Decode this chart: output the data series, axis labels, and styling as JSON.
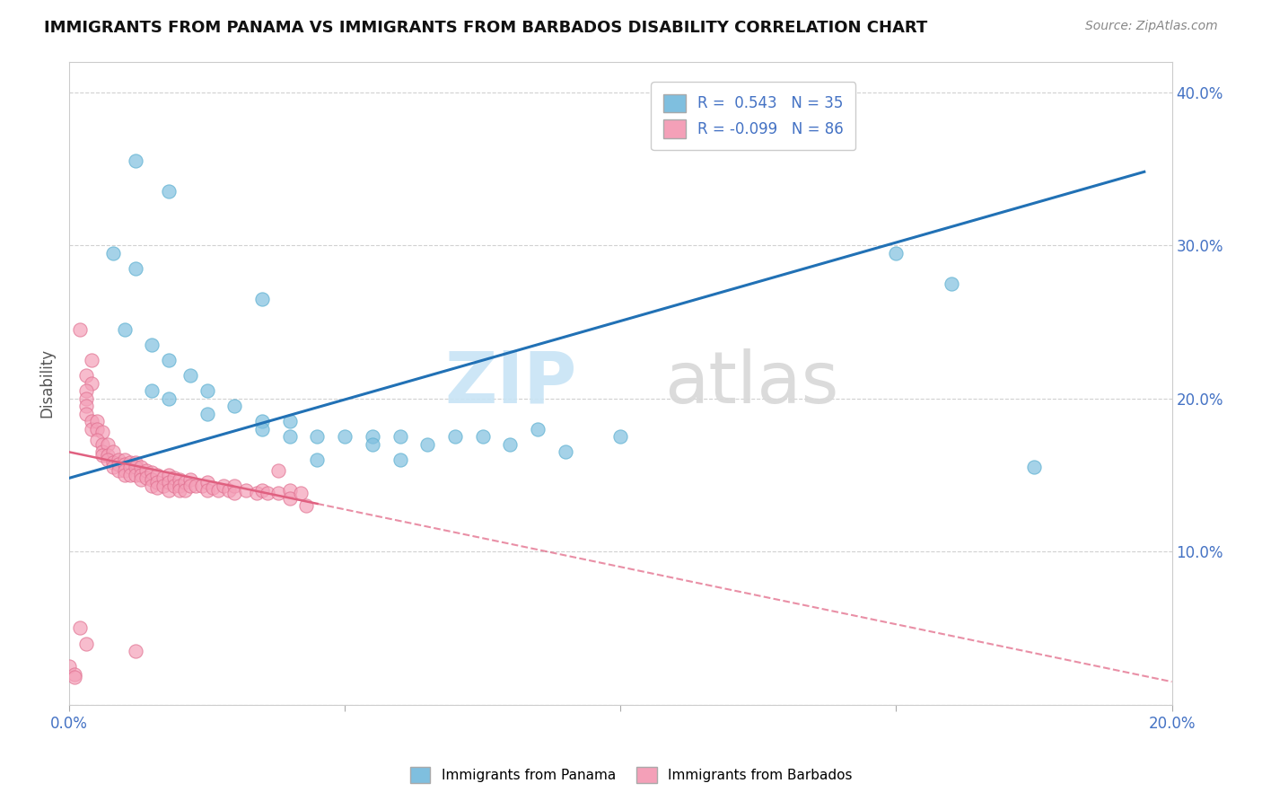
{
  "title": "IMMIGRANTS FROM PANAMA VS IMMIGRANTS FROM BARBADOS DISABILITY CORRELATION CHART",
  "source_text": "Source: ZipAtlas.com",
  "ylabel": "Disability",
  "xlim": [
    0.0,
    0.2
  ],
  "ylim": [
    0.0,
    0.42
  ],
  "x_ticks": [
    0.0,
    0.05,
    0.1,
    0.15,
    0.2
  ],
  "y_ticks": [
    0.0,
    0.1,
    0.2,
    0.3,
    0.4
  ],
  "blue_color": "#7fbfdf",
  "pink_color": "#f4a0b8",
  "blue_line_color": "#2171b5",
  "pink_line_color": "#e06080",
  "panama_points": [
    [
      0.012,
      0.355
    ],
    [
      0.018,
      0.335
    ],
    [
      0.008,
      0.295
    ],
    [
      0.012,
      0.285
    ],
    [
      0.035,
      0.265
    ],
    [
      0.01,
      0.245
    ],
    [
      0.015,
      0.235
    ],
    [
      0.018,
      0.225
    ],
    [
      0.022,
      0.215
    ],
    [
      0.015,
      0.205
    ],
    [
      0.025,
      0.205
    ],
    [
      0.018,
      0.2
    ],
    [
      0.03,
      0.195
    ],
    [
      0.025,
      0.19
    ],
    [
      0.035,
      0.185
    ],
    [
      0.04,
      0.185
    ],
    [
      0.035,
      0.18
    ],
    [
      0.04,
      0.175
    ],
    [
      0.045,
      0.175
    ],
    [
      0.05,
      0.175
    ],
    [
      0.055,
      0.175
    ],
    [
      0.06,
      0.175
    ],
    [
      0.07,
      0.175
    ],
    [
      0.075,
      0.175
    ],
    [
      0.085,
      0.18
    ],
    [
      0.055,
      0.17
    ],
    [
      0.065,
      0.17
    ],
    [
      0.08,
      0.17
    ],
    [
      0.09,
      0.165
    ],
    [
      0.045,
      0.16
    ],
    [
      0.06,
      0.16
    ],
    [
      0.1,
      0.175
    ],
    [
      0.15,
      0.295
    ],
    [
      0.16,
      0.275
    ],
    [
      0.175,
      0.155
    ]
  ],
  "barbados_points": [
    [
      0.002,
      0.245
    ],
    [
      0.004,
      0.225
    ],
    [
      0.003,
      0.215
    ],
    [
      0.004,
      0.21
    ],
    [
      0.003,
      0.205
    ],
    [
      0.003,
      0.2
    ],
    [
      0.003,
      0.195
    ],
    [
      0.003,
      0.19
    ],
    [
      0.004,
      0.185
    ],
    [
      0.004,
      0.18
    ],
    [
      0.005,
      0.185
    ],
    [
      0.005,
      0.18
    ],
    [
      0.006,
      0.178
    ],
    [
      0.005,
      0.173
    ],
    [
      0.006,
      0.17
    ],
    [
      0.006,
      0.165
    ],
    [
      0.007,
      0.17
    ],
    [
      0.006,
      0.163
    ],
    [
      0.007,
      0.163
    ],
    [
      0.008,
      0.165
    ],
    [
      0.007,
      0.16
    ],
    [
      0.008,
      0.158
    ],
    [
      0.008,
      0.155
    ],
    [
      0.009,
      0.16
    ],
    [
      0.009,
      0.157
    ],
    [
      0.009,
      0.153
    ],
    [
      0.01,
      0.16
    ],
    [
      0.01,
      0.157
    ],
    [
      0.01,
      0.153
    ],
    [
      0.01,
      0.15
    ],
    [
      0.011,
      0.158
    ],
    [
      0.011,
      0.155
    ],
    [
      0.011,
      0.15
    ],
    [
      0.012,
      0.158
    ],
    [
      0.012,
      0.155
    ],
    [
      0.012,
      0.15
    ],
    [
      0.013,
      0.155
    ],
    [
      0.013,
      0.15
    ],
    [
      0.013,
      0.147
    ],
    [
      0.014,
      0.153
    ],
    [
      0.014,
      0.148
    ],
    [
      0.015,
      0.152
    ],
    [
      0.015,
      0.147
    ],
    [
      0.015,
      0.143
    ],
    [
      0.016,
      0.15
    ],
    [
      0.016,
      0.145
    ],
    [
      0.016,
      0.142
    ],
    [
      0.017,
      0.148
    ],
    [
      0.017,
      0.143
    ],
    [
      0.018,
      0.15
    ],
    [
      0.018,
      0.145
    ],
    [
      0.018,
      0.14
    ],
    [
      0.019,
      0.148
    ],
    [
      0.019,
      0.143
    ],
    [
      0.02,
      0.147
    ],
    [
      0.02,
      0.143
    ],
    [
      0.02,
      0.14
    ],
    [
      0.021,
      0.145
    ],
    [
      0.021,
      0.14
    ],
    [
      0.022,
      0.147
    ],
    [
      0.022,
      0.143
    ],
    [
      0.023,
      0.143
    ],
    [
      0.024,
      0.143
    ],
    [
      0.025,
      0.145
    ],
    [
      0.025,
      0.14
    ],
    [
      0.026,
      0.142
    ],
    [
      0.027,
      0.14
    ],
    [
      0.028,
      0.143
    ],
    [
      0.029,
      0.14
    ],
    [
      0.03,
      0.143
    ],
    [
      0.03,
      0.138
    ],
    [
      0.032,
      0.14
    ],
    [
      0.034,
      0.138
    ],
    [
      0.035,
      0.14
    ],
    [
      0.036,
      0.138
    ],
    [
      0.038,
      0.138
    ],
    [
      0.04,
      0.14
    ],
    [
      0.04,
      0.135
    ],
    [
      0.042,
      0.138
    ],
    [
      0.043,
      0.13
    ],
    [
      0.002,
      0.05
    ],
    [
      0.003,
      0.04
    ],
    [
      0.012,
      0.035
    ],
    [
      0.0,
      0.025
    ],
    [
      0.001,
      0.02
    ],
    [
      0.001,
      0.018
    ],
    [
      0.038,
      0.153
    ]
  ],
  "panama_trendline": [
    [
      0.0,
      0.148
    ],
    [
      0.195,
      0.348
    ]
  ],
  "barbados_trendline": [
    [
      0.0,
      0.165
    ],
    [
      0.2,
      0.015
    ]
  ]
}
